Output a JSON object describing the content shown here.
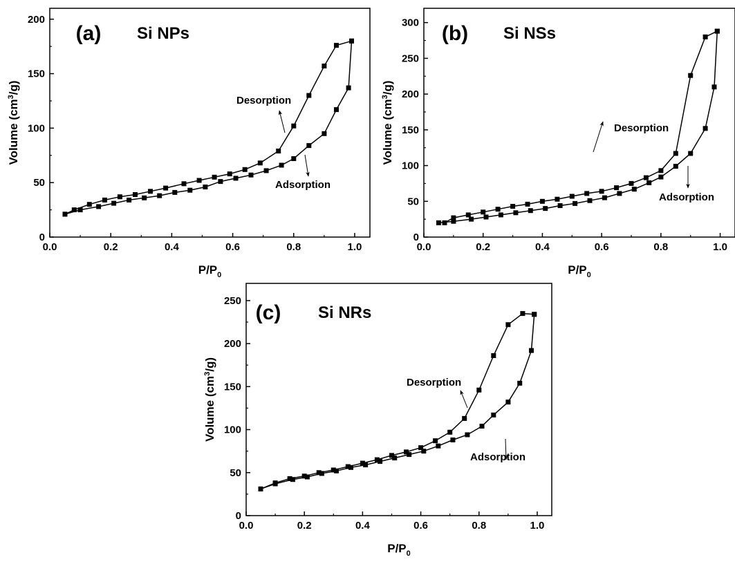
{
  "chart_data": [
    {
      "type": "line",
      "panel_label": "(a)",
      "sample": "Si NPs",
      "xlabel": "P/P0",
      "ylabel": "Volume (cm3/g)",
      "xlim": [
        0.0,
        1.05
      ],
      "ylim": [
        0,
        210
      ],
      "xticks": [
        "0.0",
        "0.2",
        "0.4",
        "0.6",
        "0.8",
        "1.0"
      ],
      "yticks": [
        "0",
        "50",
        "100",
        "150",
        "200"
      ],
      "grid": false,
      "series": [
        {
          "name": "Adsorption",
          "x": [
            0.05,
            0.1,
            0.16,
            0.21,
            0.26,
            0.31,
            0.36,
            0.41,
            0.46,
            0.51,
            0.56,
            0.61,
            0.66,
            0.71,
            0.76,
            0.8,
            0.85,
            0.9,
            0.94,
            0.98,
            0.99
          ],
          "y": [
            21,
            25,
            28,
            31,
            34,
            36,
            38,
            41,
            43,
            46,
            51,
            54,
            57,
            61,
            66,
            72,
            84,
            95,
            117,
            137,
            180
          ]
        },
        {
          "name": "Desorption",
          "x": [
            0.99,
            0.94,
            0.9,
            0.85,
            0.8,
            0.75,
            0.69,
            0.64,
            0.59,
            0.54,
            0.49,
            0.44,
            0.38,
            0.33,
            0.28,
            0.23,
            0.18,
            0.13,
            0.08,
            0.05
          ],
          "y": [
            180,
            176,
            157,
            130,
            102,
            79,
            68,
            62,
            58,
            55,
            52,
            49,
            45,
            42,
            39,
            37,
            34,
            30,
            25,
            21
          ]
        }
      ],
      "annotations": [
        "Desorption",
        "Adsorption"
      ]
    },
    {
      "type": "line",
      "panel_label": "(b)",
      "sample": "Si NSs",
      "xlabel": "P/P0",
      "ylabel": "Volume (cm3/g)",
      "xlim": [
        0.0,
        1.05
      ],
      "ylim": [
        0,
        320
      ],
      "xticks": [
        "0.0",
        "0.2",
        "0.4",
        "0.6",
        "0.8",
        "1.0"
      ],
      "yticks": [
        "0",
        "50",
        "100",
        "150",
        "200",
        "250",
        "300"
      ],
      "grid": false,
      "series": [
        {
          "name": "Adsorption",
          "x": [
            0.05,
            0.1,
            0.16,
            0.21,
            0.26,
            0.31,
            0.36,
            0.41,
            0.46,
            0.51,
            0.56,
            0.61,
            0.66,
            0.71,
            0.76,
            0.8,
            0.85,
            0.9,
            0.95,
            0.98,
            0.99
          ],
          "y": [
            20,
            22,
            25,
            28,
            31,
            34,
            37,
            40,
            44,
            47,
            51,
            55,
            61,
            67,
            76,
            84,
            99,
            117,
            152,
            210,
            288
          ]
        },
        {
          "name": "Desorption",
          "x": [
            0.99,
            0.95,
            0.9,
            0.85,
            0.8,
            0.75,
            0.7,
            0.65,
            0.6,
            0.55,
            0.5,
            0.45,
            0.4,
            0.35,
            0.3,
            0.25,
            0.2,
            0.15,
            0.1,
            0.07
          ],
          "y": [
            288,
            280,
            226,
            117,
            93,
            83,
            75,
            69,
            64,
            61,
            57,
            53,
            50,
            46,
            43,
            39,
            35,
            31,
            27,
            20
          ]
        }
      ],
      "annotations": [
        "Desorption",
        "Adsorption"
      ]
    },
    {
      "type": "line",
      "panel_label": "(c)",
      "sample": "Si NRs",
      "xlabel": "P/P0",
      "ylabel": "Volume (cm3/g)",
      "xlim": [
        0.0,
        1.05
      ],
      "ylim": [
        0,
        270
      ],
      "xticks": [
        "0.0",
        "0.2",
        "0.4",
        "0.6",
        "0.8",
        "1.0"
      ],
      "yticks": [
        "0",
        "50",
        "100",
        "150",
        "200",
        "250"
      ],
      "grid": false,
      "series": [
        {
          "name": "Adsorption",
          "x": [
            0.05,
            0.1,
            0.16,
            0.21,
            0.26,
            0.31,
            0.36,
            0.41,
            0.46,
            0.51,
            0.56,
            0.61,
            0.66,
            0.71,
            0.76,
            0.81,
            0.85,
            0.9,
            0.94,
            0.98,
            0.99
          ],
          "y": [
            31,
            37,
            42,
            45,
            49,
            52,
            56,
            59,
            63,
            67,
            71,
            75,
            81,
            88,
            94,
            104,
            117,
            132,
            154,
            192,
            234
          ]
        },
        {
          "name": "Desorption",
          "x": [
            0.99,
            0.95,
            0.9,
            0.85,
            0.8,
            0.75,
            0.7,
            0.65,
            0.6,
            0.55,
            0.5,
            0.45,
            0.4,
            0.35,
            0.3,
            0.25,
            0.2,
            0.15,
            0.1,
            0.05
          ],
          "y": [
            234,
            235,
            222,
            186,
            146,
            113,
            97,
            87,
            79,
            74,
            70,
            65,
            61,
            57,
            53,
            50,
            46,
            43,
            38,
            31
          ]
        }
      ],
      "annotations": [
        "Desorption",
        "Adsorption"
      ]
    }
  ]
}
